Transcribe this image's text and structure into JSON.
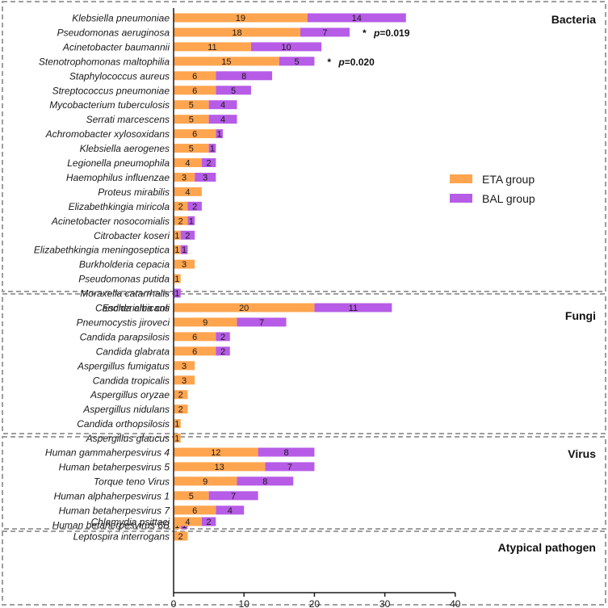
{
  "chart_data": {
    "type": "bar",
    "orientation": "horizontal",
    "stacked": true,
    "xlim": [
      0,
      40
    ],
    "xticks": [
      0,
      10,
      20,
      30,
      40
    ],
    "legend": {
      "position": "right",
      "entries": [
        {
          "name": "ETA group",
          "color": "#FFA54F"
        },
        {
          "name": "BAL group",
          "color": "#B65CE6"
        }
      ]
    },
    "groups": [
      {
        "name": "Bacteria",
        "items": [
          {
            "label": "Klebsiella pneumoniae",
            "eta": 19,
            "bal": 14
          },
          {
            "label": "Pseudomonas aeruginosa",
            "eta": 18,
            "bal": 7,
            "sig_star": "*",
            "sig_p": "p",
            "sig_value": "=0.019"
          },
          {
            "label": "Acinetobacter baumannii",
            "eta": 11,
            "bal": 10
          },
          {
            "label": "Stenotrophomonas maltophilia",
            "eta": 15,
            "bal": 5,
            "sig_star": "*",
            "sig_p": "p",
            "sig_value": "=0.020"
          },
          {
            "label": "Staphylococcus aureus",
            "eta": 6,
            "bal": 8
          },
          {
            "label": "Streptococcus pneumoniae",
            "eta": 6,
            "bal": 5
          },
          {
            "label": "Mycobacterium tuberculosis",
            "eta": 5,
            "bal": 4
          },
          {
            "label": "Serrati marcescens",
            "eta": 5,
            "bal": 4
          },
          {
            "label": "Achromobacter xylosoxidans",
            "eta": 6,
            "bal": 1
          },
          {
            "label": "Klebsiella aerogenes",
            "eta": 5,
            "bal": 1
          },
          {
            "label": "Legionella pneumophila",
            "eta": 4,
            "bal": 2
          },
          {
            "label": "Haemophilus influenzae",
            "eta": 3,
            "bal": 3
          },
          {
            "label": "Proteus mirabilis",
            "eta": 4,
            "bal": 0
          },
          {
            "label": "Elizabethkingia miricola",
            "eta": 2,
            "bal": 2
          },
          {
            "label": "Acinetobacter nosocomialis",
            "eta": 2,
            "bal": 1
          },
          {
            "label": "Citrobacter koseri",
            "eta": 1,
            "bal": 2
          },
          {
            "label": "Elizabethkingia meningoseptica",
            "eta": 1,
            "bal": 1
          },
          {
            "label": "Burkholderia cepacia",
            "eta": 3,
            "bal": 0
          },
          {
            "label": "Pseudomonas putida",
            "eta": 1,
            "bal": 0
          },
          {
            "label": "Moraxella catarrhalis",
            "eta": 0,
            "bal": 1
          },
          {
            "label": "Escherichia coli",
            "eta": 1,
            "bal": 0
          }
        ]
      },
      {
        "name": "Fungi",
        "items": [
          {
            "label": "Candida albicans",
            "eta": 20,
            "bal": 11
          },
          {
            "label": "Pneumocystis jiroveci",
            "eta": 9,
            "bal": 7
          },
          {
            "label": "Candida parapsilosis",
            "eta": 6,
            "bal": 2
          },
          {
            "label": "Candida glabrata",
            "eta": 6,
            "bal": 2
          },
          {
            "label": "Aspergillus fumigatus",
            "eta": 3,
            "bal": 0
          },
          {
            "label": "Candida tropicalis",
            "eta": 3,
            "bal": 0
          },
          {
            "label": "Aspergillus oryzae",
            "eta": 2,
            "bal": 0
          },
          {
            "label": "Aspergillus nidulans",
            "eta": 2,
            "bal": 0
          },
          {
            "label": "Candida orthopsilosis",
            "eta": 1,
            "bal": 0
          },
          {
            "label": "Aspergillus glaucus",
            "eta": 1,
            "bal": 0
          }
        ]
      },
      {
        "name": "Virus",
        "items": [
          {
            "label": "Human gammaherpesvirus 4",
            "eta": 12,
            "bal": 8
          },
          {
            "label": "Human betaherpesvirus 5",
            "eta": 13,
            "bal": 7
          },
          {
            "label": "Torque teno Virus",
            "eta": 9,
            "bal": 8
          },
          {
            "label": "Human alphaherpesvirus 1",
            "eta": 5,
            "bal": 7
          },
          {
            "label": "Human betaherpesvirus 7",
            "eta": 6,
            "bal": 4
          },
          {
            "label": "Human betaherpesvirus 6B",
            "eta": 1,
            "bal": 1
          }
        ]
      },
      {
        "name": "Atypical pathogen",
        "items": [
          {
            "label": "Chlamydia psittaci",
            "eta": 4,
            "bal": 2
          },
          {
            "label": "Leptospira interrogans",
            "eta": 2,
            "bal": 0
          }
        ]
      }
    ]
  }
}
